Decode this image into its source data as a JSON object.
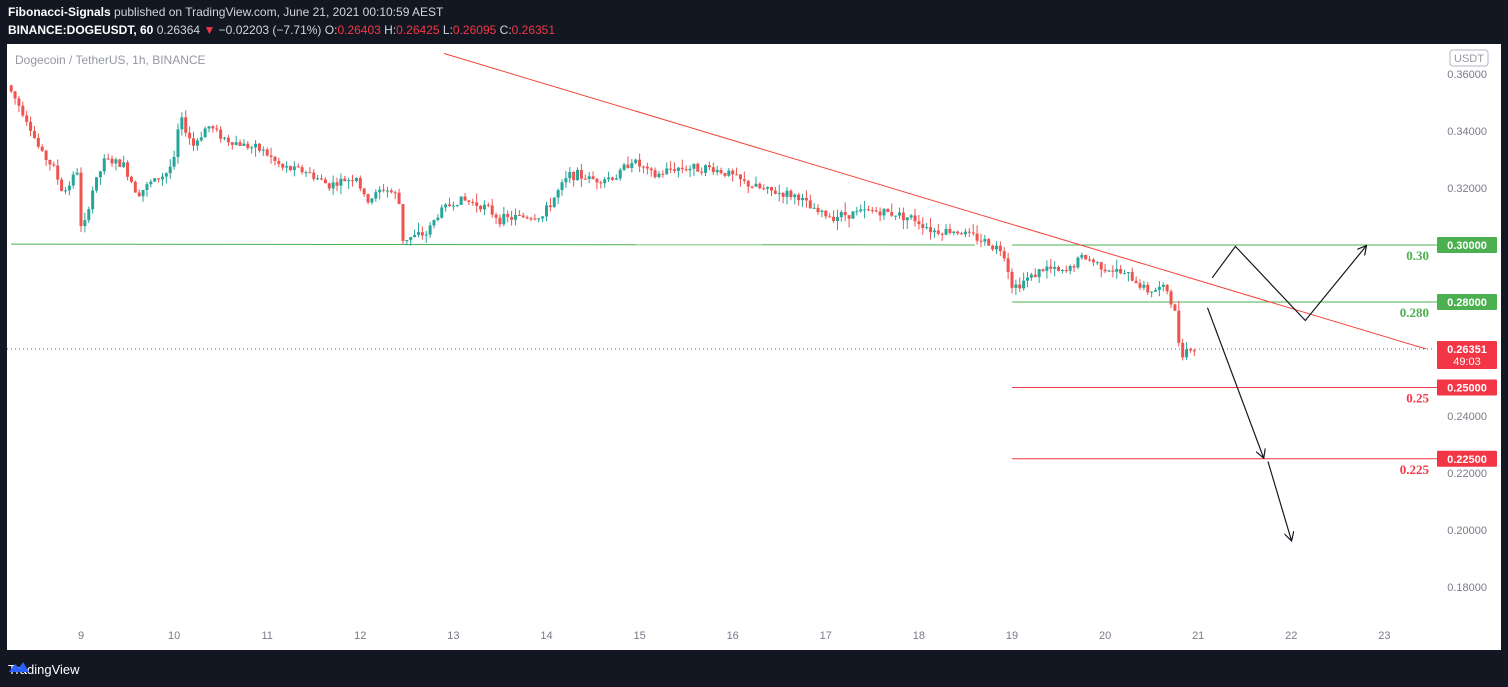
{
  "header": {
    "author": "Fibonacci-Signals",
    "published_text": "published on TradingView.com, June 21, 2021 00:10:59 AEST",
    "symbol": "BINANCE:DOGEUSDT, 60",
    "last": "0.26364",
    "arrow": "▼",
    "change": "−0.02203 (−7.71%)",
    "o_label": "O:",
    "o_value": "0.26403",
    "h_label": "H:",
    "h_value": "0.26425",
    "l_label": "L:",
    "l_value": "0.26095",
    "c_label": "C:",
    "c_value": "0.26351"
  },
  "footer": {
    "brand": "TradingView"
  },
  "colors": {
    "bull": "#26a69a",
    "bear": "#ef5350",
    "green_level": "#4caf50",
    "red_level": "#f23645",
    "trend": "#f44336"
  },
  "chart_data": {
    "type": "candlestick",
    "title": "Dogecoin / TetherUS, 1h, BINANCE",
    "currency_badge": "USDT",
    "ylim": [
      0.17,
      0.367
    ],
    "xlim_days": [
      8.25,
      23.5
    ],
    "y_ticks": [
      "0.36000",
      "0.34000",
      "0.32000",
      "0.30000",
      "0.28000",
      "0.26000",
      "0.24000",
      "0.22000",
      "0.20000",
      "0.18000"
    ],
    "x_ticks": [
      "9",
      "10",
      "11",
      "12",
      "13",
      "14",
      "15",
      "16",
      "17",
      "18",
      "19",
      "20",
      "21",
      "22",
      "23"
    ],
    "levels": [
      {
        "value": 0.3,
        "label": "0.30",
        "badge": "0.30000",
        "color": "#4caf50"
      },
      {
        "value": 0.28,
        "label": "0.280",
        "badge": "0.28000",
        "color": "#4caf50"
      },
      {
        "value": 0.25,
        "label": "0.25",
        "badge": "0.25000",
        "color": "#f23645"
      },
      {
        "value": 0.225,
        "label": "0.225",
        "badge": "0.22500",
        "color": "#f23645"
      }
    ],
    "current_price": {
      "value": 0.26351,
      "badge": "0.26351",
      "countdown": "49:03"
    },
    "support_line": {
      "from": [
        8.25,
        0.3003
      ],
      "to": [
        18.6,
        0.3
      ],
      "color": "#4caf50"
    },
    "trendline": {
      "from": [
        12.9,
        0.3672
      ],
      "to": [
        23.45,
        0.2635
      ],
      "color": "#f44336"
    },
    "projection_up": [
      [
        21.15,
        0.2885
      ],
      [
        21.4,
        0.2995
      ],
      [
        22.15,
        0.2735
      ],
      [
        22.8,
        0.2995
      ]
    ],
    "projection_down": [
      [
        21.1,
        0.278
      ],
      [
        21.7,
        0.2255
      ],
      [
        22.0,
        0.1965
      ]
    ],
    "price_path": [
      [
        8.25,
        0.356
      ],
      [
        8.45,
        0.345
      ],
      [
        8.6,
        0.333
      ],
      [
        8.75,
        0.327
      ],
      [
        8.85,
        0.318
      ],
      [
        9.0,
        0.326
      ],
      [
        9.05,
        0.302
      ],
      [
        9.15,
        0.318
      ],
      [
        9.3,
        0.33
      ],
      [
        9.5,
        0.328
      ],
      [
        9.65,
        0.318
      ],
      [
        9.8,
        0.322
      ],
      [
        9.95,
        0.325
      ],
      [
        10.05,
        0.33
      ],
      [
        10.1,
        0.345
      ],
      [
        10.25,
        0.335
      ],
      [
        10.4,
        0.342
      ],
      [
        10.6,
        0.337
      ],
      [
        10.8,
        0.335
      ],
      [
        11.0,
        0.333
      ],
      [
        11.2,
        0.327
      ],
      [
        11.45,
        0.326
      ],
      [
        11.7,
        0.321
      ],
      [
        12.0,
        0.324
      ],
      [
        12.1,
        0.315
      ],
      [
        12.3,
        0.32
      ],
      [
        12.45,
        0.317
      ],
      [
        12.5,
        0.302
      ],
      [
        12.75,
        0.304
      ],
      [
        12.9,
        0.312
      ],
      [
        13.1,
        0.316
      ],
      [
        13.35,
        0.314
      ],
      [
        13.55,
        0.309
      ],
      [
        13.8,
        0.31
      ],
      [
        14.0,
        0.31
      ],
      [
        14.15,
        0.318
      ],
      [
        14.3,
        0.325
      ],
      [
        14.55,
        0.323
      ],
      [
        14.8,
        0.324
      ],
      [
        14.95,
        0.33
      ],
      [
        15.2,
        0.324
      ],
      [
        15.4,
        0.327
      ],
      [
        15.6,
        0.327
      ],
      [
        15.8,
        0.327
      ],
      [
        16.0,
        0.325
      ],
      [
        16.15,
        0.322
      ],
      [
        16.4,
        0.319
      ],
      [
        16.6,
        0.318
      ],
      [
        16.75,
        0.317
      ],
      [
        16.9,
        0.312
      ],
      [
        17.1,
        0.31
      ],
      [
        17.3,
        0.311
      ],
      [
        17.55,
        0.312
      ],
      [
        17.8,
        0.311
      ],
      [
        18.0,
        0.309
      ],
      [
        18.2,
        0.305
      ],
      [
        18.45,
        0.305
      ],
      [
        18.7,
        0.302
      ],
      [
        18.95,
        0.298
      ],
      [
        19.05,
        0.285
      ],
      [
        19.2,
        0.288
      ],
      [
        19.4,
        0.292
      ],
      [
        19.6,
        0.29
      ],
      [
        19.8,
        0.296
      ],
      [
        20.05,
        0.292
      ],
      [
        20.3,
        0.289
      ],
      [
        20.5,
        0.284
      ],
      [
        20.7,
        0.285
      ],
      [
        20.8,
        0.275
      ],
      [
        20.85,
        0.262
      ],
      [
        20.95,
        0.264
      ],
      [
        21.0,
        0.2635
      ]
    ]
  }
}
